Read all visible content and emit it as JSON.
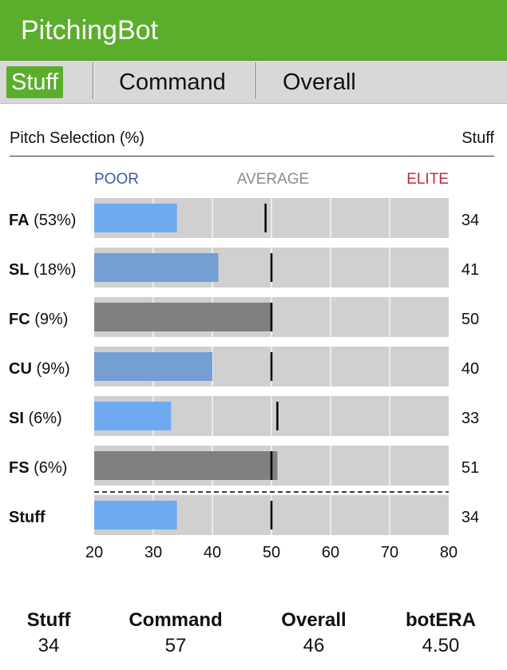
{
  "app": {
    "title": "PitchingBot"
  },
  "tabs": [
    {
      "label": "Stuff",
      "active": true
    },
    {
      "label": "Command",
      "active": false
    },
    {
      "label": "Overall",
      "active": false
    }
  ],
  "section": {
    "left_label": "Pitch Selection (%)",
    "right_label": "Stuff"
  },
  "colors": {
    "header": "#5aae2c",
    "poor": "#3b5ba5",
    "average": "#8c8c8c",
    "elite": "#c0293b",
    "bar_light_blue": "#6eaaf0",
    "bar_mid_blue": "#739fd2",
    "bar_gray": "#808080",
    "track": "#d0d0d0"
  },
  "chart_data": {
    "type": "bar",
    "orientation": "horizontal",
    "scale_labels": {
      "poor": "POOR",
      "average": "AVERAGE",
      "elite": "ELITE"
    },
    "xlim": [
      20,
      80
    ],
    "xticks": [
      20,
      30,
      40,
      50,
      60,
      70,
      80
    ],
    "grid": true,
    "rows": [
      {
        "pitch": "FA",
        "pct": "(53%)",
        "value": 34,
        "avg": 49,
        "color_key": "bar_light_blue"
      },
      {
        "pitch": "SL",
        "pct": "(18%)",
        "value": 41,
        "avg": 50,
        "color_key": "bar_mid_blue"
      },
      {
        "pitch": "FC",
        "pct": "(9%)",
        "value": 50,
        "avg": 50,
        "color_key": "bar_gray"
      },
      {
        "pitch": "CU",
        "pct": "(9%)",
        "value": 40,
        "avg": 50,
        "color_key": "bar_mid_blue"
      },
      {
        "pitch": "SI",
        "pct": "(6%)",
        "value": 33,
        "avg": 51,
        "color_key": "bar_light_blue"
      },
      {
        "pitch": "FS",
        "pct": "(6%)",
        "value": 51,
        "avg": 50,
        "color_key": "bar_gray"
      }
    ],
    "total_row": {
      "label": "Stuff",
      "value": 34,
      "avg": 50,
      "color_key": "bar_light_blue"
    }
  },
  "summary": [
    {
      "label": "Stuff",
      "value": "34"
    },
    {
      "label": "Command",
      "value": "57"
    },
    {
      "label": "Overall",
      "value": "46"
    },
    {
      "label": "botERA",
      "value": "4.50"
    }
  ]
}
